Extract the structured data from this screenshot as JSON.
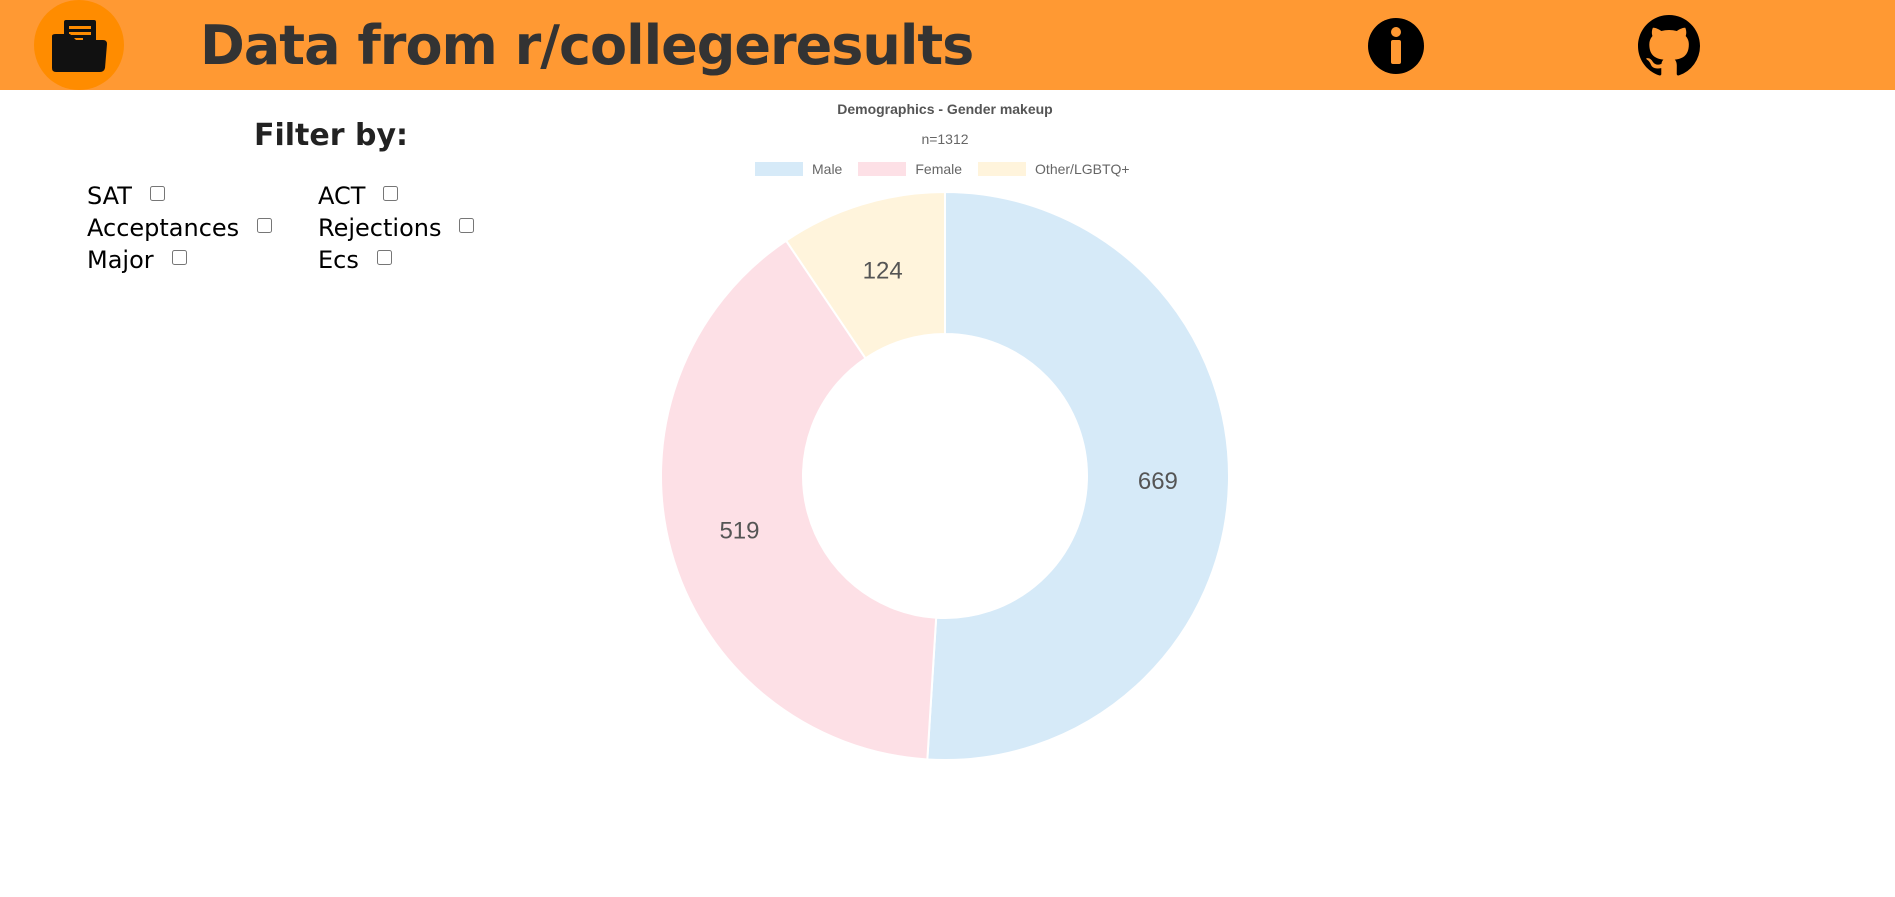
{
  "header": {
    "title": "Data from r/collegeresults",
    "logo_icon": "folder-document-icon",
    "info_icon": "info-icon",
    "github_icon": "github-icon",
    "bg_color": "#ff9933"
  },
  "filters": {
    "heading": "Filter by:",
    "items": [
      {
        "label": "SAT",
        "checked": false
      },
      {
        "label": "ACT",
        "checked": false
      },
      {
        "label": "Acceptances",
        "checked": false
      },
      {
        "label": "Rejections",
        "checked": false
      },
      {
        "label": "Major",
        "checked": false
      },
      {
        "label": "Ecs",
        "checked": false
      }
    ]
  },
  "chart_data": {
    "type": "pie",
    "title": "Demographics - Gender makeup",
    "subtitle": "n=1312",
    "legend_position": "top",
    "series": [
      {
        "name": "Male",
        "value": 669,
        "color": "#d6eaf8"
      },
      {
        "name": "Female",
        "value": 519,
        "color": "#fde0e6"
      },
      {
        "name": "Other/LGBTQ+",
        "value": 124,
        "color": "#fff4dc"
      }
    ]
  }
}
